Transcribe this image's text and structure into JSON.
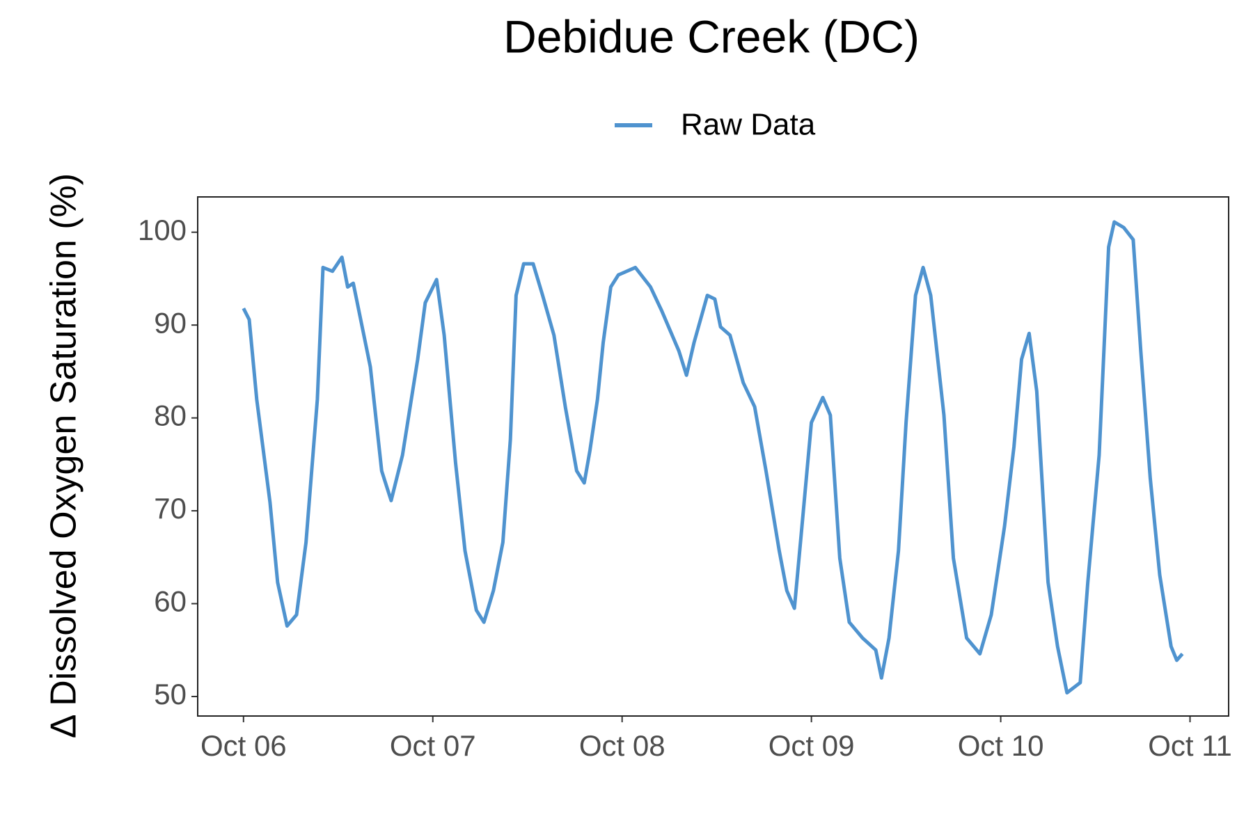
{
  "chart_data": {
    "type": "line",
    "title": "Debidue Creek (DC)",
    "y_label": "Δ Dissolved Oxygen Saturation (%)",
    "legend_position": "top",
    "x": [
      0,
      0.03,
      0.07,
      0.14,
      0.18,
      0.23,
      0.28,
      0.33,
      0.39,
      0.42,
      0.47,
      0.52,
      0.55,
      0.58,
      0.67,
      0.73,
      0.78,
      0.84,
      0.92,
      0.96,
      1.02,
      1.06,
      1.12,
      1.17,
      1.23,
      1.27,
      1.32,
      1.37,
      1.41,
      1.44,
      1.48,
      1.53,
      1.58,
      1.64,
      1.7,
      1.76,
      1.8,
      1.83,
      1.87,
      1.9,
      1.94,
      1.98,
      2.07,
      2.15,
      2.21,
      2.3,
      2.34,
      2.38,
      2.45,
      2.49,
      2.52,
      2.57,
      2.64,
      2.7,
      2.76,
      2.83,
      2.87,
      2.91,
      2.95,
      3.0,
      3.06,
      3.1,
      3.15,
      3.2,
      3.27,
      3.34,
      3.37,
      3.41,
      3.46,
      3.5,
      3.55,
      3.59,
      3.63,
      3.7,
      3.75,
      3.82,
      3.89,
      3.95,
      4.02,
      4.07,
      4.11,
      4.15,
      4.19,
      4.25,
      4.3,
      4.35,
      4.42,
      4.46,
      4.52,
      4.57,
      4.6,
      4.65,
      4.7,
      4.74,
      4.79,
      4.84,
      4.9,
      4.93,
      4.96
    ],
    "series": [
      {
        "name": "Raw Data",
        "color": "#4f93cf",
        "values": [
          91.8,
          90.6,
          82,
          70.9,
          62.3,
          57.6,
          58.8,
          66.6,
          82,
          96.2,
          95.8,
          97.3,
          94.1,
          94.5,
          85.5,
          74.3,
          71.1,
          76,
          86.3,
          92.4,
          94.9,
          88.9,
          75.2,
          65.7,
          59.3,
          58,
          61.4,
          66.6,
          77.7,
          93.2,
          96.6,
          96.6,
          93.2,
          88.9,
          81.2,
          74.3,
          73,
          76.5,
          82,
          88.1,
          94.1,
          95.4,
          96.2,
          94.1,
          91.5,
          87.2,
          84.6,
          88.1,
          93.2,
          92.8,
          89.8,
          88.9,
          83.8,
          81.2,
          74.3,
          65.7,
          61.4,
          59.5,
          68.3,
          79.5,
          82.2,
          80.3,
          64.9,
          58,
          56.3,
          55,
          52,
          56.3,
          65.7,
          79.5,
          93.2,
          96.2,
          93.2,
          80.3,
          64.9,
          56.3,
          54.6,
          58.8,
          68.3,
          76.9,
          86.3,
          89.1,
          82.9,
          62.3,
          55.4,
          50.4,
          51.5,
          62.3,
          76,
          98.4,
          101.1,
          100.5,
          99.2,
          87.2,
          73.5,
          63.1,
          55.4,
          53.9,
          54.6
        ]
      }
    ],
    "xlim": [
      -0.242,
      5.204
    ],
    "xticks": [
      {
        "value": 0,
        "label": "Oct 06"
      },
      {
        "value": 1,
        "label": "Oct 07"
      },
      {
        "value": 2,
        "label": "Oct 08"
      },
      {
        "value": 3,
        "label": "Oct 09"
      },
      {
        "value": 4,
        "label": "Oct 10"
      },
      {
        "value": 5,
        "label": "Oct 11"
      }
    ],
    "ylim": [
      47.9,
      103.8
    ],
    "yticks": [
      50,
      60,
      70,
      80,
      90,
      100
    ]
  }
}
